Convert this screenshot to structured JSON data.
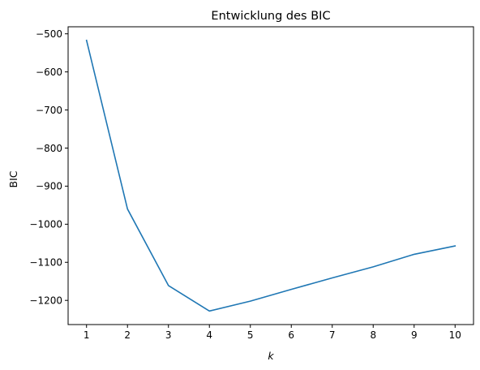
{
  "chart_data": {
    "type": "line",
    "title": "Entwicklung des BIC",
    "xlabel": "k",
    "ylabel": "BIC",
    "x": [
      1,
      2,
      3,
      4,
      5,
      6,
      7,
      8,
      9,
      10
    ],
    "series": [
      {
        "values": [
          -517,
          -960,
          -1161,
          -1228,
          -1202,
          -1171,
          -1141,
          -1112,
          -1079,
          -1057
        ],
        "color": "#1f77b4"
      }
    ],
    "xticks": [
      "1",
      "2",
      "3",
      "4",
      "5",
      "6",
      "7",
      "8",
      "9",
      "10"
    ],
    "yticks": [
      -1200,
      -1100,
      -1000,
      -900,
      -800,
      -700,
      -600,
      -500
    ],
    "ytick_labels": [
      "−1200",
      "−1100",
      "−1000",
      "−900",
      "−800",
      "−700",
      "−600",
      "−500"
    ],
    "xlim": [
      0.55,
      10.45
    ],
    "ylim": [
      -1263.5,
      -481.5
    ],
    "grid": false,
    "legend": "none"
  }
}
